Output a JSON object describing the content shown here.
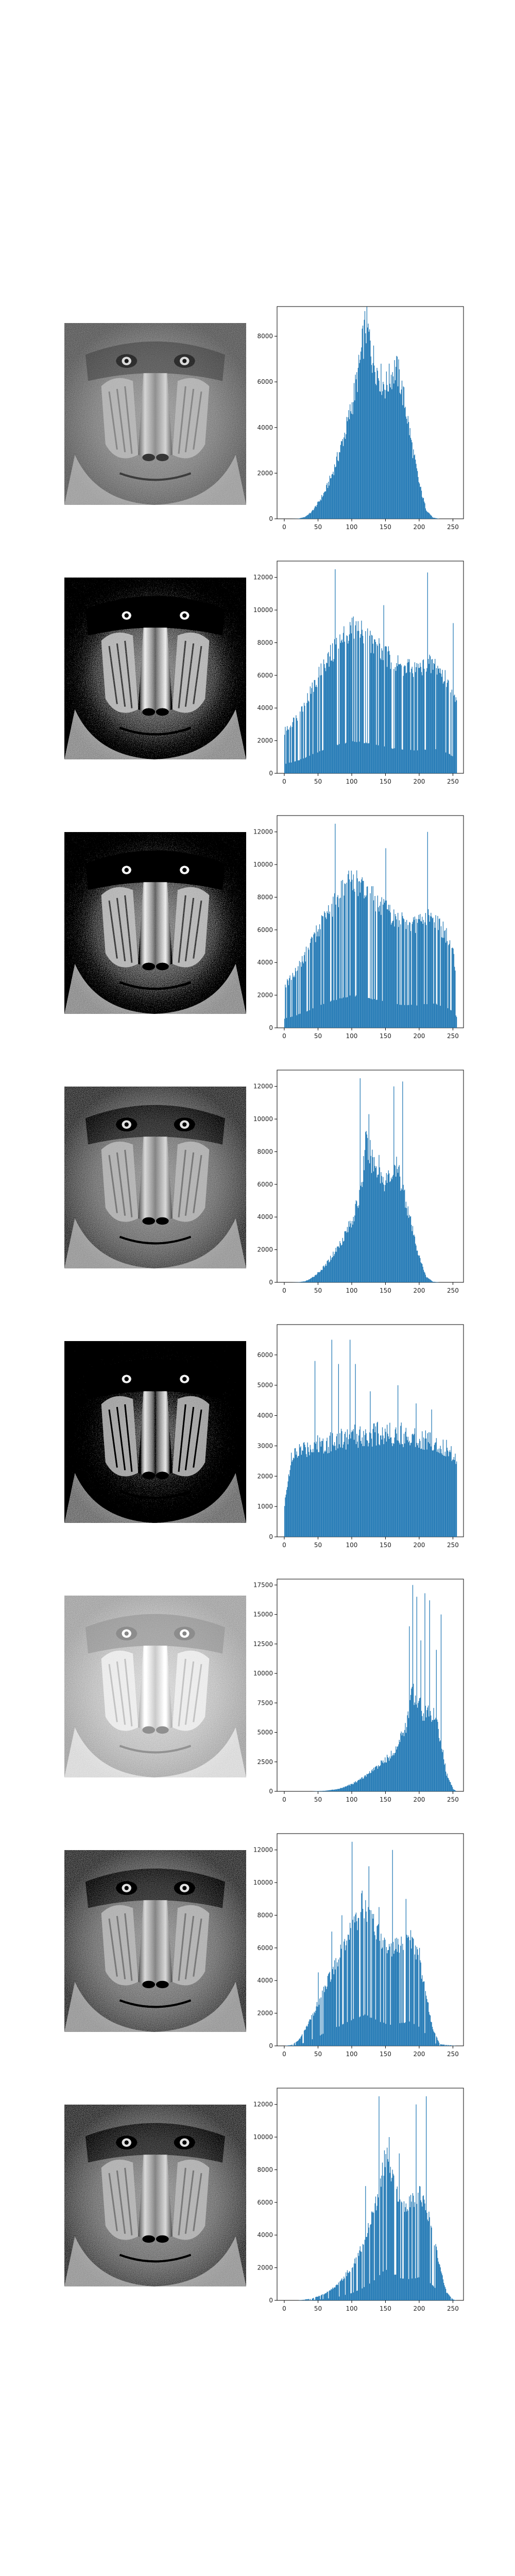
{
  "colors": {
    "bars": "#1f77b4",
    "frame": "#000000",
    "background": "#ffffff"
  },
  "panels": [
    {
      "image_icon": "baboon-grayscale-image",
      "image_variant": "original"
    },
    {
      "image_icon": "baboon-grayscale-image",
      "image_variant": "high-contrast"
    },
    {
      "image_icon": "baboon-grayscale-image",
      "image_variant": "high-contrast"
    },
    {
      "image_icon": "baboon-grayscale-image",
      "image_variant": "mild-contrast"
    },
    {
      "image_icon": "baboon-grayscale-image",
      "image_variant": "equalized-edges"
    },
    {
      "image_icon": "baboon-grayscale-image",
      "image_variant": "brightened"
    },
    {
      "image_icon": "baboon-grayscale-image",
      "image_variant": "mild-contrast"
    },
    {
      "image_icon": "baboon-grayscale-image",
      "image_variant": "mild-contrast"
    }
  ],
  "chart_data": [
    {
      "type": "bar",
      "description_of_shape": "bimodal-right-skew",
      "xlim": [
        0,
        255
      ],
      "ylim": [
        0,
        9300
      ],
      "xticks": [
        "0",
        "50",
        "100",
        "150",
        "200",
        "250"
      ],
      "yticks": [
        "0",
        "2000",
        "4000",
        "6000",
        "8000"
      ],
      "ytick_values": [
        0,
        2000,
        4000,
        6000,
        8000
      ],
      "profile": [
        [
          0,
          0
        ],
        [
          10,
          0
        ],
        [
          20,
          5
        ],
        [
          30,
          80
        ],
        [
          40,
          300
        ],
        [
          50,
          700
        ],
        [
          60,
          1200
        ],
        [
          70,
          1900
        ],
        [
          80,
          2800
        ],
        [
          90,
          3800
        ],
        [
          100,
          5000
        ],
        [
          110,
          6500
        ],
        [
          115,
          7500
        ],
        [
          120,
          8500
        ],
        [
          125,
          8000
        ],
        [
          130,
          7100
        ],
        [
          140,
          6300
        ],
        [
          145,
          6000
        ],
        [
          150,
          5800
        ],
        [
          155,
          6100
        ],
        [
          160,
          6400
        ],
        [
          165,
          6600
        ],
        [
          170,
          6200
        ],
        [
          180,
          4800
        ],
        [
          190,
          3000
        ],
        [
          200,
          1500
        ],
        [
          210,
          400
        ],
        [
          220,
          50
        ],
        [
          230,
          0
        ],
        [
          255,
          0
        ]
      ],
      "spikes": []
    },
    {
      "type": "bar",
      "xlim": [
        0,
        255
      ],
      "ylim": [
        0,
        13000
      ],
      "xticks": [
        "0",
        "50",
        "100",
        "150",
        "200",
        "250"
      ],
      "yticks": [
        "0",
        "2000",
        "4000",
        "6000",
        "8000",
        "10000",
        "12000"
      ],
      "ytick_values": [
        0,
        2000,
        4000,
        6000,
        8000,
        10000,
        12000
      ],
      "profile": [
        [
          0,
          2500
        ],
        [
          10,
          3000
        ],
        [
          20,
          3500
        ],
        [
          30,
          4200
        ],
        [
          40,
          5000
        ],
        [
          50,
          5800
        ],
        [
          60,
          6500
        ],
        [
          70,
          7200
        ],
        [
          80,
          7800
        ],
        [
          90,
          8300
        ],
        [
          100,
          8700
        ],
        [
          110,
          8600
        ],
        [
          120,
          8300
        ],
        [
          130,
          7900
        ],
        [
          140,
          7500
        ],
        [
          150,
          7100
        ],
        [
          160,
          6800
        ],
        [
          170,
          6500
        ],
        [
          180,
          6300
        ],
        [
          190,
          6200
        ],
        [
          200,
          6300
        ],
        [
          210,
          6500
        ],
        [
          220,
          6600
        ],
        [
          230,
          6300
        ],
        [
          240,
          5600
        ],
        [
          250,
          4600
        ],
        [
          255,
          4200
        ]
      ],
      "spikes": [
        [
          75,
          12500
        ],
        [
          147,
          10300
        ],
        [
          183,
          7000
        ],
        [
          212,
          12300
        ],
        [
          250,
          9200
        ]
      ],
      "gappy": true
    },
    {
      "type": "bar",
      "xlim": [
        0,
        255
      ],
      "ylim": [
        0,
        13000
      ],
      "xticks": [
        "0",
        "50",
        "100",
        "150",
        "200",
        "250"
      ],
      "yticks": [
        "0",
        "2000",
        "4000",
        "6000",
        "8000",
        "10000",
        "12000"
      ],
      "ytick_values": [
        0,
        2000,
        4000,
        6000,
        8000,
        10000,
        12000
      ],
      "profile": [
        [
          0,
          2500
        ],
        [
          10,
          3000
        ],
        [
          20,
          3600
        ],
        [
          30,
          4300
        ],
        [
          40,
          5100
        ],
        [
          50,
          5900
        ],
        [
          60,
          6600
        ],
        [
          70,
          7300
        ],
        [
          80,
          7900
        ],
        [
          90,
          8400
        ],
        [
          100,
          8800
        ],
        [
          110,
          8600
        ],
        [
          120,
          8300
        ],
        [
          130,
          7900
        ],
        [
          140,
          7400
        ],
        [
          150,
          7000
        ],
        [
          160,
          6700
        ],
        [
          170,
          6400
        ],
        [
          180,
          6200
        ],
        [
          190,
          6100
        ],
        [
          200,
          6300
        ],
        [
          210,
          6500
        ],
        [
          220,
          6600
        ],
        [
          230,
          6200
        ],
        [
          240,
          5500
        ],
        [
          250,
          4500
        ],
        [
          255,
          3000
        ]
      ],
      "spikes": [
        [
          75,
          12500
        ],
        [
          150,
          11000
        ],
        [
          212,
          12000
        ]
      ],
      "gappy": true
    },
    {
      "type": "bar",
      "xlim": [
        0,
        255
      ],
      "ylim": [
        0,
        13000
      ],
      "xticks": [
        "0",
        "50",
        "100",
        "150",
        "200",
        "250"
      ],
      "yticks": [
        "0",
        "2000",
        "4000",
        "6000",
        "8000",
        "10000",
        "12000"
      ],
      "ytick_values": [
        0,
        2000,
        4000,
        6000,
        8000,
        10000,
        12000
      ],
      "profile": [
        [
          0,
          0
        ],
        [
          10,
          0
        ],
        [
          20,
          10
        ],
        [
          30,
          60
        ],
        [
          40,
          250
        ],
        [
          50,
          600
        ],
        [
          60,
          1000
        ],
        [
          70,
          1600
        ],
        [
          80,
          2200
        ],
        [
          90,
          3000
        ],
        [
          100,
          3800
        ],
        [
          110,
          5000
        ],
        [
          115,
          6200
        ],
        [
          120,
          8500
        ],
        [
          125,
          8000
        ],
        [
          130,
          7500
        ],
        [
          140,
          6800
        ],
        [
          145,
          6400
        ],
        [
          150,
          6200
        ],
        [
          155,
          6400
        ],
        [
          160,
          6700
        ],
        [
          165,
          7000
        ],
        [
          170,
          6600
        ],
        [
          180,
          5000
        ],
        [
          190,
          3100
        ],
        [
          200,
          1500
        ],
        [
          210,
          350
        ],
        [
          220,
          40
        ],
        [
          230,
          0
        ],
        [
          255,
          0
        ]
      ],
      "spikes": [
        [
          112,
          12500
        ],
        [
          125,
          10300
        ],
        [
          140,
          7800
        ],
        [
          162,
          12000
        ],
        [
          175,
          12300
        ]
      ],
      "gappy": false
    },
    {
      "type": "bar",
      "xlim": [
        0,
        255
      ],
      "ylim": [
        0,
        7000
      ],
      "xticks": [
        "0",
        "50",
        "100",
        "150",
        "200",
        "250"
      ],
      "yticks": [
        "0",
        "1000",
        "2000",
        "3000",
        "4000",
        "5000",
        "6000"
      ],
      "ytick_values": [
        0,
        1000,
        2000,
        3000,
        4000,
        5000,
        6000
      ],
      "profile": [
        [
          0,
          1000
        ],
        [
          5,
          2000
        ],
        [
          10,
          2500
        ],
        [
          20,
          2800
        ],
        [
          30,
          2900
        ],
        [
          40,
          3000
        ],
        [
          60,
          3100
        ],
        [
          80,
          3200
        ],
        [
          100,
          3300
        ],
        [
          120,
          3350
        ],
        [
          140,
          3400
        ],
        [
          160,
          3400
        ],
        [
          180,
          3350
        ],
        [
          200,
          3300
        ],
        [
          220,
          3100
        ],
        [
          240,
          2900
        ],
        [
          250,
          2700
        ],
        [
          255,
          2600
        ]
      ],
      "spikes": [
        [
          45,
          5800
        ],
        [
          70,
          6500
        ],
        [
          80,
          5700
        ],
        [
          97,
          6500
        ],
        [
          105,
          5700
        ],
        [
          127,
          4800
        ],
        [
          168,
          5000
        ],
        [
          195,
          4400
        ],
        [
          218,
          4200
        ]
      ],
      "gappy": false
    },
    {
      "type": "bar",
      "xlim": [
        0,
        255
      ],
      "ylim": [
        0,
        18000
      ],
      "xticks": [
        "0",
        "50",
        "100",
        "150",
        "200",
        "250"
      ],
      "yticks": [
        "0",
        "2500",
        "5000",
        "7500",
        "10000",
        "12500",
        "15000",
        "17500"
      ],
      "ytick_values": [
        0,
        2500,
        5000,
        7500,
        10000,
        12500,
        15000,
        17500
      ],
      "profile": [
        [
          0,
          0
        ],
        [
          40,
          0
        ],
        [
          60,
          50
        ],
        [
          80,
          200
        ],
        [
          100,
          600
        ],
        [
          120,
          1300
        ],
        [
          140,
          2200
        ],
        [
          160,
          3200
        ],
        [
          170,
          4200
        ],
        [
          180,
          5500
        ],
        [
          185,
          7000
        ],
        [
          190,
          8500
        ],
        [
          195,
          8000
        ],
        [
          200,
          7500
        ],
        [
          205,
          6800
        ],
        [
          210,
          6600
        ],
        [
          215,
          6900
        ],
        [
          220,
          6500
        ],
        [
          230,
          4800
        ],
        [
          240,
          1500
        ],
        [
          250,
          200
        ],
        [
          255,
          0
        ]
      ],
      "spikes": [
        [
          185,
          14000
        ],
        [
          190,
          17500
        ],
        [
          196,
          16500
        ],
        [
          202,
          12800
        ],
        [
          208,
          16800
        ],
        [
          215,
          16200
        ],
        [
          225,
          12000
        ],
        [
          232,
          15000
        ]
      ],
      "gappy": false
    },
    {
      "type": "bar",
      "xlim": [
        0,
        255
      ],
      "ylim": [
        0,
        13000
      ],
      "xticks": [
        "0",
        "50",
        "100",
        "150",
        "200",
        "250"
      ],
      "yticks": [
        "0",
        "2000",
        "4000",
        "6000",
        "8000",
        "10000",
        "12000"
      ],
      "ytick_values": [
        0,
        2000,
        4000,
        6000,
        8000,
        10000,
        12000
      ],
      "profile": [
        [
          0,
          0
        ],
        [
          10,
          50
        ],
        [
          20,
          300
        ],
        [
          30,
          900
        ],
        [
          40,
          1700
        ],
        [
          50,
          2600
        ],
        [
          60,
          3500
        ],
        [
          70,
          4400
        ],
        [
          80,
          5300
        ],
        [
          90,
          6200
        ],
        [
          100,
          7000
        ],
        [
          110,
          7800
        ],
        [
          115,
          8500
        ],
        [
          120,
          8300
        ],
        [
          130,
          7600
        ],
        [
          140,
          6700
        ],
        [
          150,
          6000
        ],
        [
          160,
          5800
        ],
        [
          170,
          6000
        ],
        [
          180,
          6400
        ],
        [
          185,
          6600
        ],
        [
          190,
          6300
        ],
        [
          200,
          5000
        ],
        [
          210,
          3000
        ],
        [
          220,
          1000
        ],
        [
          230,
          100
        ],
        [
          255,
          0
        ]
      ],
      "spikes": [
        [
          50,
          4500
        ],
        [
          70,
          7000
        ],
        [
          85,
          8000
        ],
        [
          100,
          12500
        ],
        [
          125,
          11000
        ],
        [
          140,
          8500
        ],
        [
          160,
          12000
        ],
        [
          180,
          9000
        ],
        [
          200,
          6000
        ]
      ],
      "gappy": true
    },
    {
      "type": "bar",
      "xlim": [
        0,
        255
      ],
      "ylim": [
        0,
        13000
      ],
      "xticks": [
        "0",
        "50",
        "100",
        "150",
        "200",
        "250"
      ],
      "yticks": [
        "0",
        "2000",
        "4000",
        "6000",
        "8000",
        "10000",
        "12000"
      ],
      "ytick_values": [
        0,
        2000,
        4000,
        6000,
        8000,
        10000,
        12000
      ],
      "profile": [
        [
          0,
          0
        ],
        [
          20,
          0
        ],
        [
          40,
          100
        ],
        [
          60,
          400
        ],
        [
          80,
          1000
        ],
        [
          100,
          2000
        ],
        [
          110,
          2800
        ],
        [
          120,
          3800
        ],
        [
          130,
          5000
        ],
        [
          140,
          6500
        ],
        [
          145,
          7800
        ],
        [
          150,
          8500
        ],
        [
          155,
          8200
        ],
        [
          160,
          7500
        ],
        [
          170,
          6200
        ],
        [
          180,
          5700
        ],
        [
          190,
          5900
        ],
        [
          200,
          6300
        ],
        [
          205,
          6200
        ],
        [
          210,
          5600
        ],
        [
          220,
          4000
        ],
        [
          230,
          2000
        ],
        [
          240,
          500
        ],
        [
          250,
          50
        ],
        [
          255,
          0
        ]
      ],
      "spikes": [
        [
          120,
          7000
        ],
        [
          140,
          12500
        ],
        [
          155,
          10000
        ],
        [
          170,
          9000
        ],
        [
          195,
          12000
        ],
        [
          210,
          12500
        ]
      ],
      "gappy": true
    }
  ]
}
